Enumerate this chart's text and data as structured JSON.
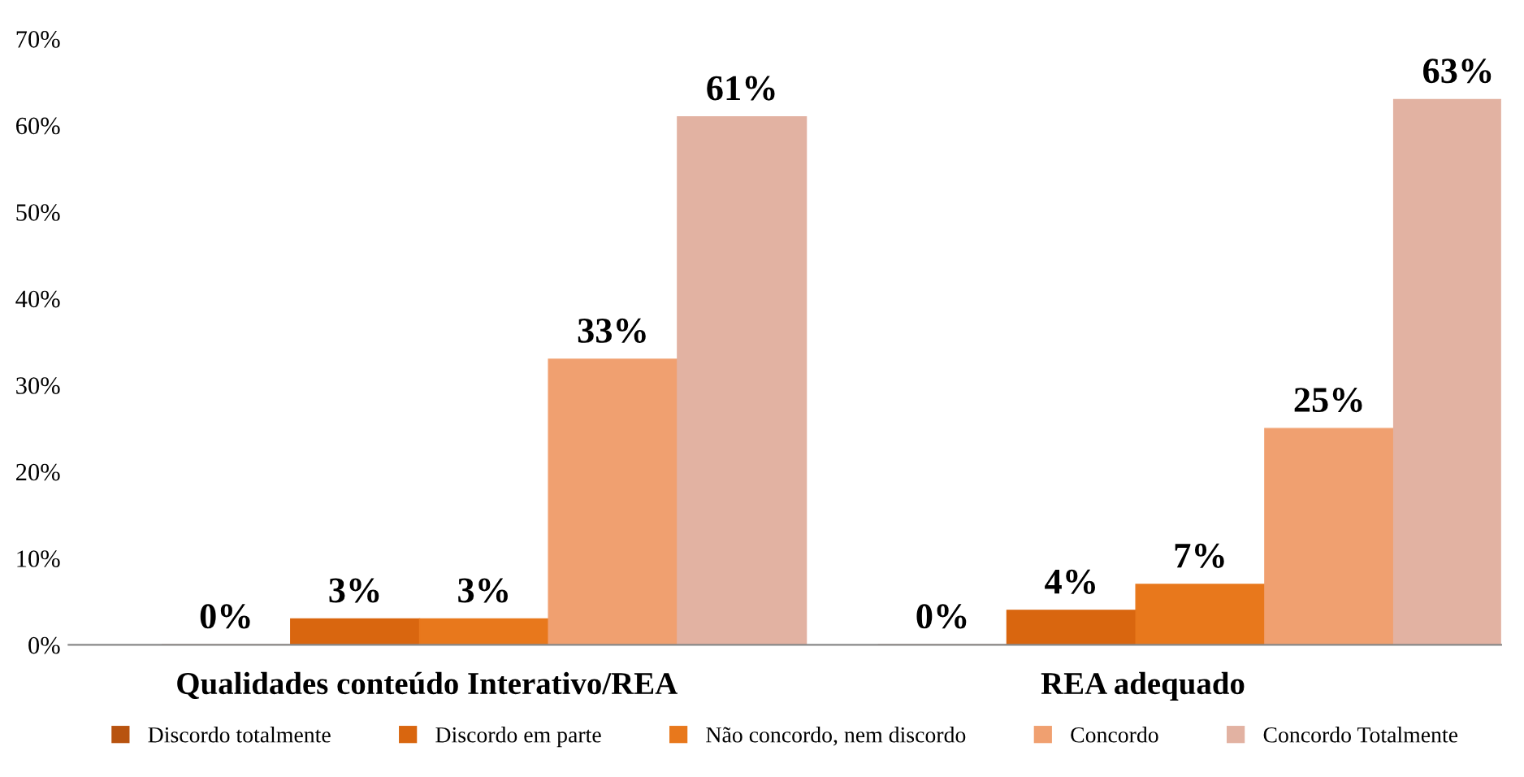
{
  "chart_data": {
    "type": "bar",
    "categories": [
      "Qualidades conteúdo Interativo/REA",
      "REA adequado"
    ],
    "series": [
      {
        "name": "Discordo totalmente",
        "color": "#b8530f",
        "values": [
          0,
          0
        ],
        "value_labels": [
          "0%",
          "0%"
        ]
      },
      {
        "name": "Discordo em parte",
        "color": "#d9660f",
        "values": [
          3,
          4
        ],
        "value_labels": [
          "3%",
          "4%"
        ]
      },
      {
        "name": "Não concordo, nem discordo",
        "color": "#e8781c",
        "values": [
          3,
          7
        ],
        "value_labels": [
          "3%",
          "7%"
        ]
      },
      {
        "name": "Concordo",
        "color": "#f0a070",
        "values": [
          33,
          25
        ],
        "value_labels": [
          "33%",
          "25%"
        ]
      },
      {
        "name": "Concordo Totalmente",
        "color": "#e2b2a2",
        "values": [
          61,
          63
        ],
        "value_labels": [
          "61%",
          "63%"
        ]
      }
    ],
    "ylim": [
      0,
      70
    ],
    "yticks": [
      {
        "value": 0,
        "label": "0%"
      },
      {
        "value": 10,
        "label": "10%"
      },
      {
        "value": 20,
        "label": "20%"
      },
      {
        "value": 30,
        "label": "30%"
      },
      {
        "value": 40,
        "label": "40%"
      },
      {
        "value": 50,
        "label": "50%"
      },
      {
        "value": 60,
        "label": "60%"
      },
      {
        "value": 70,
        "label": "70%"
      }
    ],
    "grid": false,
    "legend": "bottom"
  }
}
